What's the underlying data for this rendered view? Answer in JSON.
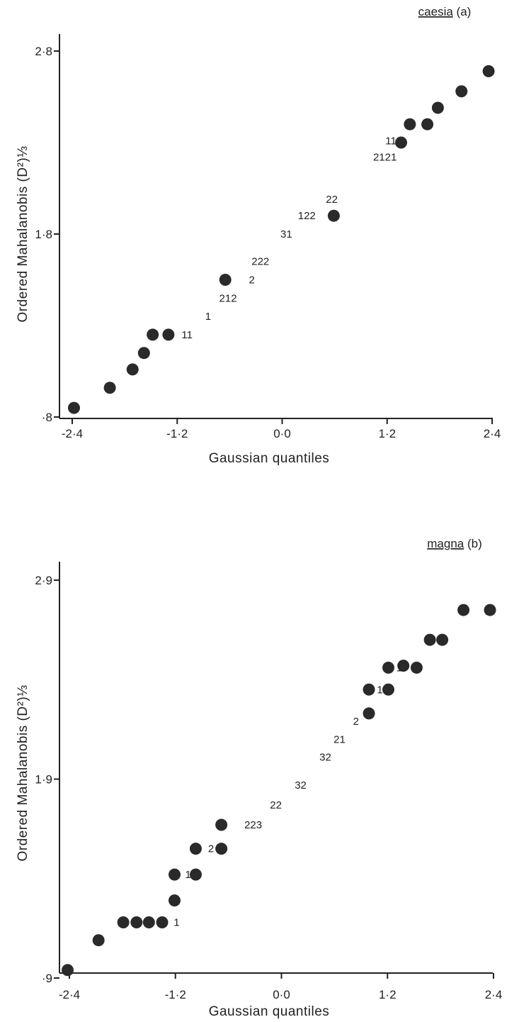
{
  "chart_data": [
    {
      "type": "scatter",
      "title_species": "caesia",
      "title_panel": "(a)",
      "xlabel": "Gaussian quantiles",
      "ylabel": "Ordered Mahalanobis (D²)⅓",
      "xlim": [
        -2.4,
        2.4
      ],
      "ylim": [
        0.8,
        2.8
      ],
      "xticks": [
        {
          "value": -2.4,
          "label": "-2·4"
        },
        {
          "value": -1.2,
          "label": "-1·2"
        },
        {
          "value": 0.0,
          "label": "0·0"
        },
        {
          "value": 1.2,
          "label": "1·2"
        },
        {
          "value": 2.4,
          "label": "2·4"
        }
      ],
      "yticks": [
        {
          "value": 0.8,
          "label": "·8"
        },
        {
          "value": 1.8,
          "label": "1·8"
        },
        {
          "value": 2.8,
          "label": "2·8"
        }
      ],
      "points": [
        {
          "x": -2.38,
          "y": 0.85
        },
        {
          "x": -1.97,
          "y": 0.96
        },
        {
          "x": -1.71,
          "y": 1.06
        },
        {
          "x": -1.58,
          "y": 1.15
        },
        {
          "x": -1.48,
          "y": 1.25
        },
        {
          "x": -1.3,
          "y": 1.25
        },
        {
          "x": -0.65,
          "y": 1.55
        },
        {
          "x": 0.59,
          "y": 1.9
        },
        {
          "x": 1.36,
          "y": 2.3
        },
        {
          "x": 1.46,
          "y": 2.4
        },
        {
          "x": 1.66,
          "y": 2.4
        },
        {
          "x": 1.78,
          "y": 2.49
        },
        {
          "x": 2.05,
          "y": 2.58
        },
        {
          "x": 2.36,
          "y": 2.69
        }
      ],
      "count_labels": [
        {
          "x": -1.15,
          "y": 1.25,
          "text": "11"
        },
        {
          "x": -0.88,
          "y": 1.35,
          "text": "1"
        },
        {
          "x": -0.72,
          "y": 1.45,
          "text": "212"
        },
        {
          "x": -0.38,
          "y": 1.55,
          "text": "2"
        },
        {
          "x": -0.35,
          "y": 1.65,
          "text": "222"
        },
        {
          "x": -0.02,
          "y": 1.8,
          "text": "31"
        },
        {
          "x": 0.18,
          "y": 1.9,
          "text": "122"
        },
        {
          "x": 0.5,
          "y": 1.99,
          "text": "22"
        },
        {
          "x": 1.04,
          "y": 2.22,
          "text": "2121"
        },
        {
          "x": 1.18,
          "y": 2.31,
          "text": "11"
        }
      ]
    },
    {
      "type": "scatter",
      "title_species": "magna",
      "title_panel": "(b)",
      "xlabel": "Gaussian quantiles",
      "ylabel": "Ordered Mahalanobis (D²)⅓",
      "xlim": [
        -2.4,
        2.4
      ],
      "ylim": [
        0.9,
        2.9
      ],
      "xticks": [
        {
          "value": -2.4,
          "label": "-2·4"
        },
        {
          "value": -1.2,
          "label": "-1·2"
        },
        {
          "value": 0.0,
          "label": "0·0"
        },
        {
          "value": 1.2,
          "label": "1·2"
        },
        {
          "value": 2.4,
          "label": "2·4"
        }
      ],
      "yticks": [
        {
          "value": 0.9,
          "label": "·9"
        },
        {
          "value": 1.9,
          "label": "1·9"
        },
        {
          "value": 2.9,
          "label": "2·9"
        }
      ],
      "points": [
        {
          "x": -2.42,
          "y": 0.94
        },
        {
          "x": -2.07,
          "y": 1.09
        },
        {
          "x": -1.79,
          "y": 1.18
        },
        {
          "x": -1.64,
          "y": 1.18
        },
        {
          "x": -1.5,
          "y": 1.18
        },
        {
          "x": -1.35,
          "y": 1.18
        },
        {
          "x": -1.21,
          "y": 1.29
        },
        {
          "x": -1.21,
          "y": 1.42
        },
        {
          "x": -0.97,
          "y": 1.42
        },
        {
          "x": -0.97,
          "y": 1.55
        },
        {
          "x": -0.68,
          "y": 1.55
        },
        {
          "x": -0.68,
          "y": 1.67
        },
        {
          "x": 0.99,
          "y": 2.23
        },
        {
          "x": 0.99,
          "y": 2.35
        },
        {
          "x": 1.21,
          "y": 2.35
        },
        {
          "x": 1.21,
          "y": 2.46
        },
        {
          "x": 1.38,
          "y": 2.47
        },
        {
          "x": 1.53,
          "y": 2.46
        },
        {
          "x": 1.68,
          "y": 2.6
        },
        {
          "x": 1.82,
          "y": 2.6
        },
        {
          "x": 2.06,
          "y": 2.75
        },
        {
          "x": 2.36,
          "y": 2.75
        }
      ],
      "count_labels": [
        {
          "x": -1.22,
          "y": 1.18,
          "text": "1"
        },
        {
          "x": -1.09,
          "y": 1.42,
          "text": "1"
        },
        {
          "x": -0.83,
          "y": 1.55,
          "text": "2"
        },
        {
          "x": -0.42,
          "y": 1.67,
          "text": "223"
        },
        {
          "x": -0.13,
          "y": 1.77,
          "text": "22"
        },
        {
          "x": 0.15,
          "y": 1.87,
          "text": "32"
        },
        {
          "x": 0.43,
          "y": 2.01,
          "text": "32"
        },
        {
          "x": 0.59,
          "y": 2.1,
          "text": "21"
        },
        {
          "x": 0.81,
          "y": 2.19,
          "text": "2"
        },
        {
          "x": 1.08,
          "y": 2.35,
          "text": "1"
        },
        {
          "x": 1.3,
          "y": 2.46,
          "text": "1"
        }
      ]
    }
  ]
}
